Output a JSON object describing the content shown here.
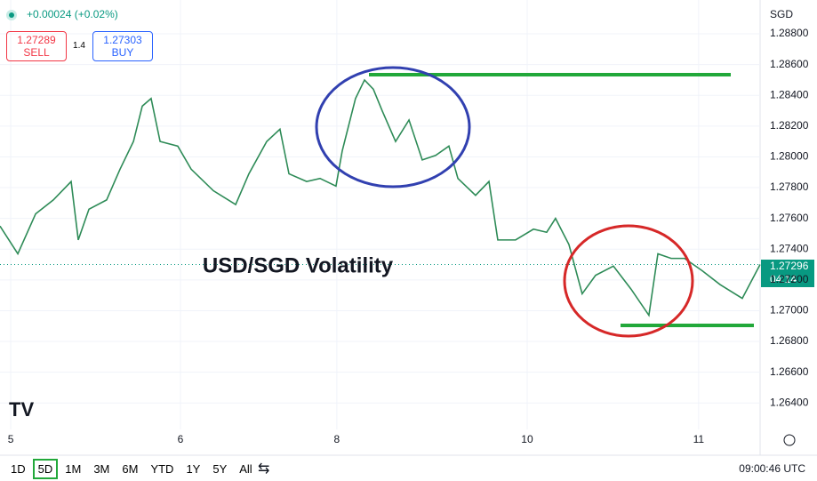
{
  "chart_data": {
    "type": "line",
    "title": "USD/SGD Volatility",
    "currency": "SGD",
    "change": "+0.00024 (+0.02%)",
    "sell_price": "1.27289",
    "sell_label": "SELL",
    "spread": "1.4",
    "buy_price": "1.27303",
    "buy_label": "BUY",
    "current_price": "1.27296",
    "countdown": "04:14",
    "clock": "09:00:46 UTC",
    "ranges": [
      "1D",
      "5D",
      "1M",
      "3M",
      "6M",
      "YTD",
      "1Y",
      "5Y",
      "All"
    ],
    "active_range": "5D",
    "color": "#2e8b57",
    "grid": true,
    "x": [
      -0.063,
      0.042,
      0.147,
      0.251,
      0.356,
      0.398,
      0.461,
      0.565,
      0.644,
      0.723,
      0.775,
      0.827,
      0.88,
      0.984,
      1.063,
      1.194,
      1.325,
      1.403,
      1.508,
      1.586,
      1.639,
      1.743,
      1.822,
      1.916,
      1.953,
      2.031,
      2.084,
      2.136,
      2.188,
      2.267,
      2.346,
      2.424,
      2.503,
      2.581,
      2.634,
      2.738,
      2.817,
      2.869,
      2.974,
      3.079,
      3.157,
      3.209,
      3.288,
      3.366,
      3.445,
      3.55,
      3.654,
      3.759,
      3.812,
      3.89,
      3.969,
      4.073,
      4.178,
      4.309,
      4.414
    ],
    "values": [
      1.2755,
      1.2737,
      1.2763,
      1.2772,
      1.2784,
      1.2746,
      1.2766,
      1.2772,
      1.2792,
      1.281,
      1.2833,
      1.2838,
      1.281,
      1.2807,
      1.2792,
      1.2778,
      1.2769,
      1.2789,
      1.281,
      1.2818,
      1.2789,
      1.2784,
      1.2786,
      1.2781,
      1.2804,
      1.2838,
      1.285,
      1.2844,
      1.283,
      1.281,
      1.2824,
      1.2798,
      1.2801,
      1.2807,
      1.2786,
      1.2775,
      1.2784,
      1.2746,
      1.2746,
      1.2753,
      1.2751,
      1.276,
      1.2743,
      1.2711,
      1.2723,
      1.2729,
      1.2714,
      1.2697,
      1.2737,
      1.2734,
      1.2734,
      1.2726,
      1.2717,
      1.2708,
      1.273
    ],
    "xlim": [
      -0.063,
      4.414
    ],
    "xticks": [
      {
        "value": 0,
        "label": "5"
      },
      {
        "value": 1,
        "label": "6"
      },
      {
        "value": 1.921,
        "label": "8"
      },
      {
        "value": 3.042,
        "label": "10"
      },
      {
        "value": 4.052,
        "label": "11"
      }
    ],
    "ylim": [
      1.26228,
      1.2902
    ],
    "yticks": [
      {
        "value": 1.288,
        "label": "1.28800"
      },
      {
        "value": 1.286,
        "label": "1.28600"
      },
      {
        "value": 1.284,
        "label": "1.28400"
      },
      {
        "value": 1.282,
        "label": "1.28200"
      },
      {
        "value": 1.28,
        "label": "1.28000"
      },
      {
        "value": 1.278,
        "label": "1.27800"
      },
      {
        "value": 1.276,
        "label": "1.27600"
      },
      {
        "value": 1.274,
        "label": "1.27400"
      },
      {
        "value": 1.272,
        "label": "1.27200"
      },
      {
        "value": 1.27,
        "label": "1.27000"
      },
      {
        "value": 1.268,
        "label": "1.26800"
      },
      {
        "value": 1.266,
        "label": "1.26600"
      },
      {
        "value": 1.264,
        "label": "1.26400"
      }
    ]
  }
}
